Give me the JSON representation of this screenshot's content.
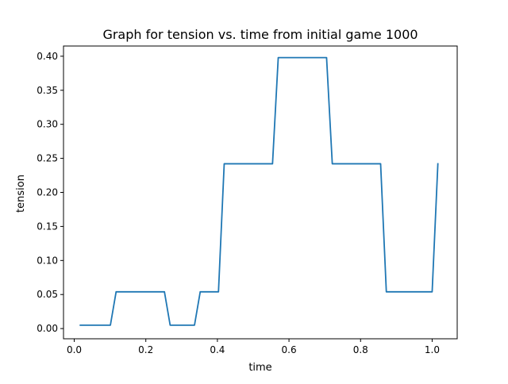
{
  "chart_data": {
    "type": "line",
    "title": "Graph for tension vs. time from initial game 1000",
    "xlabel": "time",
    "ylabel": "tension",
    "xlim": [
      -0.03,
      1.07
    ],
    "ylim": [
      -0.015,
      0.415
    ],
    "xticks": [
      0.0,
      0.2,
      0.4,
      0.6,
      0.8,
      1.0
    ],
    "xtick_labels": [
      "0.0",
      "0.2",
      "0.4",
      "0.6",
      "0.8",
      "1.0"
    ],
    "yticks": [
      0.0,
      0.05,
      0.1,
      0.15,
      0.2,
      0.25,
      0.3,
      0.35,
      0.4
    ],
    "ytick_labels": [
      "0.00",
      "0.05",
      "0.10",
      "0.15",
      "0.20",
      "0.25",
      "0.30",
      "0.35",
      "0.40"
    ],
    "grid": false,
    "series": [
      {
        "color": "#1f77b4",
        "x": [
          0.017,
          0.101,
          0.117,
          0.252,
          0.268,
          0.336,
          0.352,
          0.403,
          0.419,
          0.554,
          0.57,
          0.705,
          0.721,
          0.856,
          0.872,
          1.0,
          1.016
        ],
        "y": [
          0.005,
          0.005,
          0.054,
          0.054,
          0.005,
          0.005,
          0.054,
          0.054,
          0.242,
          0.242,
          0.398,
          0.398,
          0.242,
          0.242,
          0.054,
          0.054,
          0.242
        ]
      }
    ]
  }
}
